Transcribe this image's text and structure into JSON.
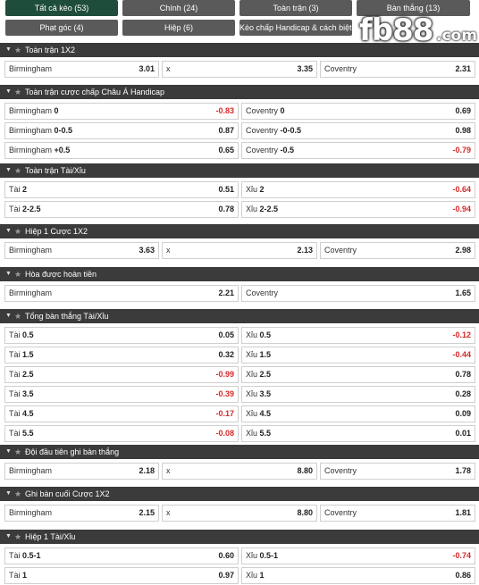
{
  "tabs": [
    {
      "label": "Tất cả kèo (53)",
      "active": true
    },
    {
      "label": "Chính (24)",
      "active": false
    },
    {
      "label": "Toàn trận (3)",
      "active": false
    },
    {
      "label": "Bàn thắng (13)",
      "active": false
    },
    {
      "label": "Phạt góc (4)",
      "active": false
    },
    {
      "label": "Hiệp (6)",
      "active": false
    },
    {
      "label": "Kèo chấp Handicap & cách biệt (3)",
      "active": false
    }
  ],
  "logo": {
    "text": "fb88",
    "suffix": ".com"
  },
  "sections": [
    {
      "title": "Toàn trận 1X2",
      "rows": [
        [
          {
            "team": "Birmingham",
            "line": "",
            "odd": "3.01"
          },
          {
            "team": "x",
            "line": "",
            "odd": "3.35"
          },
          {
            "team": "Coventry",
            "line": "",
            "odd": "2.31"
          }
        ]
      ]
    },
    {
      "title": "Toàn trận cược chấp Châu Á Handicap",
      "rows": [
        [
          {
            "team": "Birmingham",
            "line": "0",
            "odd": "-0.83"
          },
          {
            "team": "Coventry",
            "line": "0",
            "odd": "0.69"
          }
        ],
        [
          {
            "team": "Birmingham",
            "line": "0-0.5",
            "odd": "0.87"
          },
          {
            "team": "Coventry",
            "line": "-0-0.5",
            "odd": "0.98"
          }
        ],
        [
          {
            "team": "Birmingham",
            "line": "+0.5",
            "odd": "0.65"
          },
          {
            "team": "Coventry",
            "line": "-0.5",
            "odd": "-0.79"
          }
        ]
      ]
    },
    {
      "title": "Toàn trận Tài/Xỉu",
      "rows": [
        [
          {
            "team": "Tài",
            "line": "2",
            "odd": "0.51"
          },
          {
            "team": "Xỉu",
            "line": "2",
            "odd": "-0.64"
          }
        ],
        [
          {
            "team": "Tài",
            "line": "2-2.5",
            "odd": "0.78"
          },
          {
            "team": "Xỉu",
            "line": "2-2.5",
            "odd": "-0.94"
          }
        ]
      ]
    },
    {
      "title": "Hiệp 1 Cược 1X2",
      "rows": [
        [
          {
            "team": "Birmingham",
            "line": "",
            "odd": "3.63"
          },
          {
            "team": "x",
            "line": "",
            "odd": "2.13"
          },
          {
            "team": "Coventry",
            "line": "",
            "odd": "2.98"
          }
        ]
      ]
    },
    {
      "title": "Hòa được hoàn tiền",
      "rows": [
        [
          {
            "team": "Birmingham",
            "line": "",
            "odd": "2.21"
          },
          {
            "team": "Coventry",
            "line": "",
            "odd": "1.65"
          }
        ]
      ]
    },
    {
      "title": "Tổng bàn thắng Tài/Xỉu",
      "rows": [
        [
          {
            "team": "Tài",
            "line": "0.5",
            "odd": "0.05"
          },
          {
            "team": "Xỉu",
            "line": "0.5",
            "odd": "-0.12"
          }
        ],
        [
          {
            "team": "Tài",
            "line": "1.5",
            "odd": "0.32"
          },
          {
            "team": "Xỉu",
            "line": "1.5",
            "odd": "-0.44"
          }
        ],
        [
          {
            "team": "Tài",
            "line": "2.5",
            "odd": "-0.99"
          },
          {
            "team": "Xỉu",
            "line": "2.5",
            "odd": "0.78"
          }
        ],
        [
          {
            "team": "Tài",
            "line": "3.5",
            "odd": "-0.39"
          },
          {
            "team": "Xỉu",
            "line": "3.5",
            "odd": "0.28"
          }
        ],
        [
          {
            "team": "Tài",
            "line": "4.5",
            "odd": "-0.17"
          },
          {
            "team": "Xỉu",
            "line": "4.5",
            "odd": "0.09"
          }
        ],
        [
          {
            "team": "Tài",
            "line": "5.5",
            "odd": "-0.08"
          },
          {
            "team": "Xỉu",
            "line": "5.5",
            "odd": "0.01"
          }
        ]
      ]
    },
    {
      "title": "Đội đầu tiên ghi bàn thắng",
      "rows": [
        [
          {
            "team": "Birmingham",
            "line": "",
            "odd": "2.18"
          },
          {
            "team": "x",
            "line": "",
            "odd": "8.80"
          },
          {
            "team": "Coventry",
            "line": "",
            "odd": "1.78"
          }
        ]
      ]
    },
    {
      "title": "Ghi bàn cuối Cược 1X2",
      "rows": [
        [
          {
            "team": "Birmingham",
            "line": "",
            "odd": "2.15"
          },
          {
            "team": "x",
            "line": "",
            "odd": "8.80"
          },
          {
            "team": "Coventry",
            "line": "",
            "odd": "1.81"
          }
        ]
      ]
    },
    {
      "title": "Hiệp 1 Tài/Xỉu",
      "rows": [
        [
          {
            "team": "Tài",
            "line": "0.5-1",
            "odd": "0.60"
          },
          {
            "team": "Xỉu",
            "line": "0.5-1",
            "odd": "-0.74"
          }
        ],
        [
          {
            "team": "Tài",
            "line": "1",
            "odd": "0.97"
          },
          {
            "team": "Xỉu",
            "line": "1",
            "odd": "0.86"
          }
        ]
      ]
    }
  ],
  "icons": {
    "collapse": "triangle-down-icon",
    "favorite": "star-icon"
  },
  "colors": {
    "header_bg": "#3b3b3b",
    "tab_active": "#1f4d3b",
    "tab_bg": "#5a5a5a",
    "negative": "#d62828"
  }
}
